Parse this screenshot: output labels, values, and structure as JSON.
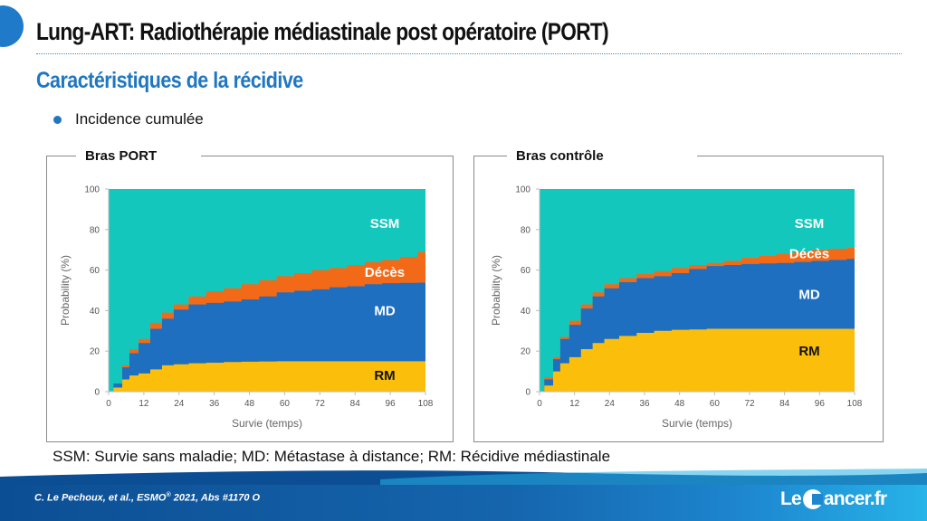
{
  "slide": {
    "title": "Lung-ART: Radiothérapie médiastinale post opératoire (PORT)",
    "subtitle": "Caractéristiques de la récidive",
    "bullet": "Incidence cumulée",
    "legend_text": "SSM: Survie sans maladie; MD: Métastase à distance; RM: Récidive médiastinale",
    "citation_main": "C. Le Pechoux, et al.,  ESMO",
    "citation_sup": "®",
    "citation_rest": " 2021, Abs #1170 O",
    "logo_left": "Le ",
    "logo_right": "ancer.fr"
  },
  "colors": {
    "SSM": "#14c7bd",
    "Décès": "#f26a17",
    "MD": "#1e6fc0",
    "RM": "#fbbe0b",
    "accent": "#1f77c1"
  },
  "chart_data": [
    {
      "type": "area",
      "title": "Bras PORT",
      "xlabel": "Survie (temps)",
      "ylabel": "Probability (%)",
      "xlim": [
        0,
        108
      ],
      "ylim": [
        0,
        100
      ],
      "xticks": [
        0,
        12,
        24,
        36,
        48,
        60,
        72,
        84,
        96,
        108
      ],
      "yticks": [
        0,
        20,
        40,
        60,
        80,
        100
      ],
      "x": [
        0,
        3,
        6,
        8,
        12,
        16,
        20,
        24,
        30,
        36,
        42,
        48,
        54,
        60,
        66,
        72,
        78,
        84,
        90,
        96,
        102,
        108
      ],
      "series": [
        {
          "name": "RM",
          "values": [
            0,
            2,
            6,
            8,
            9,
            11,
            13,
            13.5,
            14,
            14.3,
            14.6,
            14.8,
            14.9,
            15,
            15,
            15,
            15,
            15,
            15,
            15,
            15,
            15
          ]
        },
        {
          "name": "MD",
          "values": [
            0,
            4,
            12,
            19,
            24,
            31,
            36,
            40.5,
            43,
            43.8,
            44.5,
            45.5,
            47,
            49,
            49.8,
            50.5,
            51.5,
            52,
            53,
            53.5,
            53.7,
            53.8
          ]
        },
        {
          "name": "Décès",
          "values": [
            0,
            4,
            13,
            21,
            26,
            34,
            39,
            43,
            47,
            49.5,
            51,
            53,
            55,
            57,
            58.5,
            60,
            61,
            62.5,
            64,
            65,
            66.5,
            69
          ]
        },
        {
          "name": "SSM",
          "values": [
            100,
            100,
            100,
            100,
            100,
            100,
            100,
            100,
            100,
            100,
            100,
            100,
            100,
            100,
            100,
            100,
            100,
            100,
            100,
            100,
            100,
            100
          ]
        }
      ]
    },
    {
      "type": "area",
      "title": "Bras contrôle",
      "xlabel": "Survie (temps)",
      "ylabel": "Probability (%)",
      "xlim": [
        0,
        108
      ],
      "ylim": [
        0,
        100
      ],
      "xticks": [
        0,
        12,
        24,
        36,
        48,
        60,
        72,
        84,
        96,
        108
      ],
      "yticks": [
        0,
        20,
        40,
        60,
        80,
        100
      ],
      "x": [
        0,
        3,
        6,
        8,
        12,
        16,
        20,
        24,
        30,
        36,
        42,
        48,
        54,
        60,
        66,
        72,
        78,
        84,
        90,
        96,
        102,
        108
      ],
      "series": [
        {
          "name": "RM",
          "values": [
            0,
            3,
            10,
            14,
            17,
            21,
            24,
            26,
            27.5,
            29,
            30,
            30.5,
            30.7,
            31,
            31,
            31,
            31,
            31,
            31,
            31,
            31,
            31
          ]
        },
        {
          "name": "MD",
          "values": [
            0,
            6,
            16,
            26,
            33,
            41,
            47,
            51,
            54,
            56,
            57,
            58.5,
            60.5,
            62,
            62.5,
            63,
            63.3,
            63.5,
            64,
            64.5,
            65,
            65.5
          ]
        },
        {
          "name": "Décès",
          "values": [
            0,
            7,
            17,
            27,
            35,
            43,
            49,
            53,
            56,
            58,
            59.5,
            61,
            62.5,
            63.5,
            64.5,
            66,
            67,
            68,
            69,
            70,
            70.5,
            71
          ]
        },
        {
          "name": "SSM",
          "values": [
            100,
            100,
            100,
            100,
            100,
            100,
            100,
            100,
            100,
            100,
            100,
            100,
            100,
            100,
            100,
            100,
            100,
            100,
            100,
            100,
            100,
            100
          ]
        }
      ]
    }
  ]
}
